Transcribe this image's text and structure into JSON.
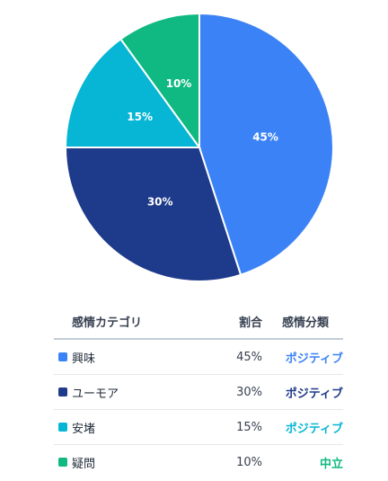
{
  "chart_data": {
    "type": "pie",
    "categories": [
      "興味",
      "ユーモア",
      "安堵",
      "疑問"
    ],
    "values": [
      45,
      30,
      15,
      10
    ],
    "labels": [
      "45%",
      "30%",
      "15%",
      "10%"
    ],
    "colors": [
      "#3b82f6",
      "#1e3a8a",
      "#06b6d4",
      "#10b981"
    ]
  },
  "table": {
    "headers": {
      "category": "感情カテゴリ",
      "ratio": "割合",
      "classification": "感情分類"
    },
    "rows": [
      {
        "name": "興味",
        "pct": "45%",
        "class": "ポジティブ",
        "color": "#3b82f6",
        "class_color": "#3b82f6"
      },
      {
        "name": "ユーモア",
        "pct": "30%",
        "class": "ポジティブ",
        "color": "#1e3a8a",
        "class_color": "#1e3a8a"
      },
      {
        "name": "安堵",
        "pct": "15%",
        "class": "ポジティブ",
        "color": "#06b6d4",
        "class_color": "#06b6d4"
      },
      {
        "name": "疑問",
        "pct": "10%",
        "class": "中立",
        "color": "#10b981",
        "class_color": "#10b981"
      }
    ]
  }
}
